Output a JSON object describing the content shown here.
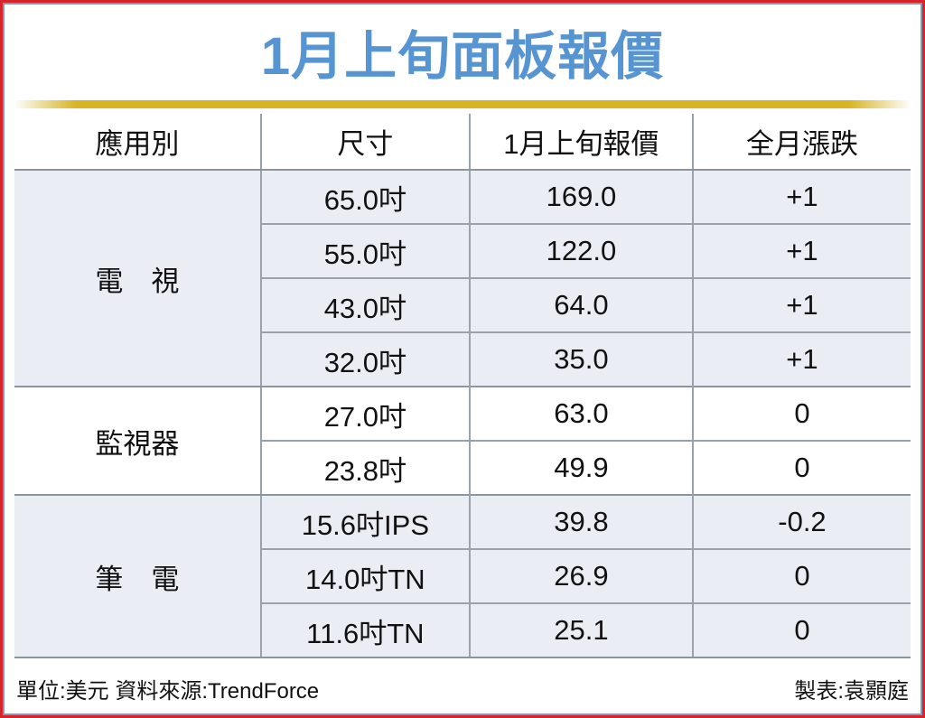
{
  "page": {
    "title": "1月上旬面板報價",
    "title_color": "#5795d2",
    "accent_bar_color": "#d8b422",
    "outer_border_color": "#d8232a",
    "inner_border_color": "#7e9cb7",
    "shaded_row_color": "#eaedf3",
    "grid_line_color": "#9aa1aa"
  },
  "table": {
    "headers": [
      "應用別",
      "尺寸",
      "1月上旬報價",
      "全月漲跌"
    ],
    "groups": [
      {
        "category": "電　視",
        "shaded": true,
        "rows": [
          [
            "65.0吋",
            "169.0",
            "+1"
          ],
          [
            "55.0吋",
            "122.0",
            "+1"
          ],
          [
            "43.0吋",
            "64.0",
            "+1"
          ],
          [
            "32.0吋",
            "35.0",
            "+1"
          ]
        ]
      },
      {
        "category": "監視器",
        "shaded": false,
        "rows": [
          [
            "27.0吋",
            "63.0",
            "0"
          ],
          [
            "23.8吋",
            "49.9",
            "0"
          ]
        ]
      },
      {
        "category": "筆　電",
        "shaded": true,
        "rows": [
          [
            "15.6吋IPS",
            "39.8",
            "-0.2"
          ],
          [
            "14.0吋TN",
            "26.9",
            "0"
          ],
          [
            "11.6吋TN",
            "25.1",
            "0"
          ]
        ]
      }
    ]
  },
  "footer": {
    "left": "單位:美元 資料來源:TrendForce",
    "right": "製表:袁顥庭"
  },
  "chart_data": {
    "type": "table",
    "title": "1月上旬面板報價",
    "columns": [
      "應用別",
      "尺寸",
      "1月上旬報價",
      "全月漲跌"
    ],
    "rows": [
      [
        "電視",
        "65.0吋",
        169.0,
        "+1"
      ],
      [
        "電視",
        "55.0吋",
        122.0,
        "+1"
      ],
      [
        "電視",
        "43.0吋",
        64.0,
        "+1"
      ],
      [
        "電視",
        "32.0吋",
        35.0,
        "+1"
      ],
      [
        "監視器",
        "27.0吋",
        63.0,
        "0"
      ],
      [
        "監視器",
        "23.8吋",
        49.9,
        "0"
      ],
      [
        "筆電",
        "15.6吋IPS",
        39.8,
        "-0.2"
      ],
      [
        "筆電",
        "14.0吋TN",
        26.9,
        "0"
      ],
      [
        "筆電",
        "11.6吋TN",
        25.1,
        "0"
      ]
    ],
    "unit": "美元",
    "source": "TrendForce",
    "author": "袁顥庭"
  }
}
